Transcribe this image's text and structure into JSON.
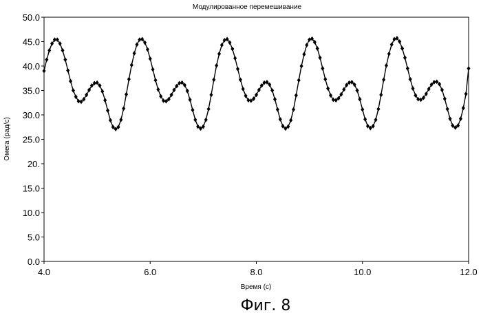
{
  "chart_data": {
    "type": "line",
    "title": "Модулированное перемешивание",
    "xlabel": "Время (с)",
    "ylabel": "Омега (рад/с)",
    "xlim": [
      4.0,
      12.0
    ],
    "ylim": [
      0.0,
      50.0
    ],
    "x_ticks": [
      "4.0",
      "6.0",
      "8.0",
      "10.0",
      "12.0"
    ],
    "y_ticks": [
      "0.0",
      "5.0",
      "10.0",
      "15.0",
      "20.",
      "25.0",
      "30.0",
      "35.0",
      "40.0",
      "45.0",
      "50.0"
    ],
    "grid": false,
    "legend": "none",
    "marker": "diamond",
    "series": [
      {
        "color": "#000000",
        "x": [
          4.0,
          4.05,
          4.1,
          4.15,
          4.2,
          4.25,
          4.3,
          4.35,
          4.4,
          4.45,
          4.5,
          4.55,
          4.6,
          4.65,
          4.7,
          4.75,
          4.8,
          4.85,
          4.9,
          4.95,
          5.0,
          5.05,
          5.1,
          5.15,
          5.2,
          5.25,
          5.3,
          5.35,
          5.4,
          5.45,
          5.5,
          5.55,
          5.6,
          5.65,
          5.7,
          5.75,
          5.8,
          5.85,
          5.9,
          5.95,
          6.0,
          6.05,
          6.1,
          6.15,
          6.2,
          6.25,
          6.3,
          6.35,
          6.4,
          6.45,
          6.5,
          6.55,
          6.6,
          6.65,
          6.7,
          6.75,
          6.8,
          6.85,
          6.9,
          6.95,
          7.0,
          7.05,
          7.1,
          7.15,
          7.2,
          7.25,
          7.3,
          7.35,
          7.4,
          7.45,
          7.5,
          7.55,
          7.6,
          7.65,
          7.7,
          7.75,
          7.8,
          7.85,
          7.9,
          7.95,
          8.0,
          8.05,
          8.1,
          8.15,
          8.2,
          8.25,
          8.3,
          8.35,
          8.4,
          8.45,
          8.5,
          8.55,
          8.6,
          8.65,
          8.7,
          8.75,
          8.8,
          8.85,
          8.9,
          8.95,
          9.0,
          9.05,
          9.1,
          9.15,
          9.2,
          9.25,
          9.3,
          9.35,
          9.4,
          9.45,
          9.5,
          9.55,
          9.6,
          9.65,
          9.7,
          9.75,
          9.8,
          9.85,
          9.9,
          9.95,
          10.0,
          10.05,
          10.1,
          10.15,
          10.2,
          10.25,
          10.3,
          10.35,
          10.4,
          10.45,
          10.5,
          10.55,
          10.6,
          10.65,
          10.7,
          10.75,
          10.8,
          10.85,
          10.9,
          10.95,
          11.0,
          11.05,
          11.1,
          11.15,
          11.2,
          11.25,
          11.3,
          11.35,
          11.4,
          11.45,
          11.5,
          11.55,
          11.6,
          11.65,
          11.7,
          11.75,
          11.8,
          11.85,
          11.9,
          11.95,
          12.0
        ],
        "y": [
          39.0,
          41.3,
          43.2,
          44.6,
          45.4,
          45.4,
          44.6,
          43.2,
          41.3,
          39.1,
          36.9,
          35.0,
          33.7,
          32.8,
          32.7,
          33.2,
          34.1,
          35.1,
          36.0,
          36.5,
          36.6,
          36.0,
          34.8,
          33.0,
          30.9,
          28.9,
          27.5,
          27.1,
          27.5,
          29.0,
          31.3,
          34.2,
          37.3,
          40.2,
          42.6,
          44.4,
          45.4,
          45.5,
          44.8,
          43.4,
          41.5,
          39.3,
          37.1,
          35.2,
          33.8,
          32.9,
          32.8,
          33.2,
          34.1,
          35.1,
          35.9,
          36.5,
          36.6,
          36.1,
          34.9,
          33.1,
          31.0,
          29.0,
          27.6,
          27.2,
          27.6,
          29.0,
          31.2,
          34.1,
          37.2,
          40.1,
          42.5,
          44.3,
          45.3,
          45.5,
          44.8,
          43.5,
          41.6,
          39.4,
          37.2,
          35.3,
          33.9,
          33.0,
          32.9,
          33.3,
          34.1,
          35.1,
          36.0,
          36.6,
          36.7,
          36.2,
          35.0,
          33.2,
          31.1,
          29.1,
          27.7,
          27.2,
          27.6,
          28.9,
          31.1,
          34.0,
          37.1,
          40.0,
          42.4,
          44.3,
          45.4,
          45.6,
          44.9,
          43.6,
          41.7,
          39.5,
          37.3,
          35.4,
          34.0,
          33.1,
          33.0,
          33.4,
          34.2,
          35.2,
          36.1,
          36.6,
          36.7,
          36.2,
          35.0,
          33.2,
          31.1,
          29.1,
          27.7,
          27.3,
          27.7,
          29.0,
          31.2,
          34.1,
          37.2,
          40.1,
          42.5,
          44.4,
          45.5,
          45.7,
          45.0,
          43.6,
          41.7,
          39.5,
          37.3,
          35.4,
          34.0,
          33.2,
          33.1,
          33.5,
          34.3,
          35.3,
          36.2,
          36.7,
          36.8,
          36.3,
          35.1,
          33.3,
          31.2,
          29.2,
          27.8,
          27.4,
          27.8,
          29.2,
          31.4,
          34.3,
          39.5
        ]
      }
    ]
  },
  "figure_caption": "Фиг. 8"
}
